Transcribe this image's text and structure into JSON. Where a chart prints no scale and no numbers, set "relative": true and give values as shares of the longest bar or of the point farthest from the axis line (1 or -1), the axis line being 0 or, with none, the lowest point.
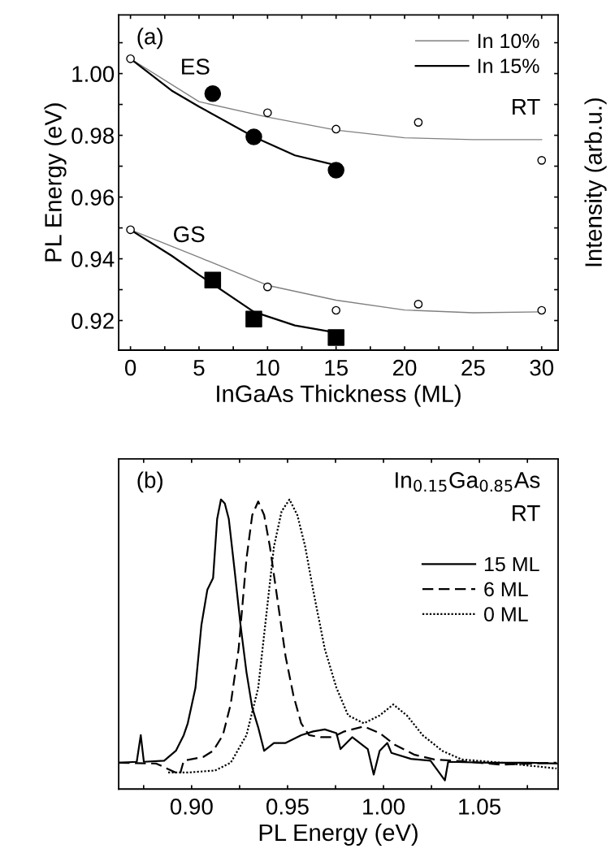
{
  "chart_data": [
    {
      "type": "scatter",
      "xlabel": "InGaAs Thickness (ML)",
      "ylabel": "PL Energy (eV)",
      "y2label": "Intensity (arb.u.)",
      "xlim": [
        -0.86,
        31.2
      ],
      "ylim": [
        0.9104,
        1.019
      ],
      "xticks": [
        0,
        {
          "value": 2.5,
          "label": null
        },
        5,
        {
          "value": 7.5,
          "label": null
        },
        10,
        {
          "value": 12.5,
          "label": null
        },
        15,
        {
          "value": 17.5,
          "label": null
        },
        20,
        {
          "value": 22.5,
          "label": null
        },
        25,
        {
          "value": 27.5,
          "label": null
        },
        30
      ],
      "yticks": [
        {
          "value": 0.92,
          "label": "0.92"
        },
        {
          "value": 0.93,
          "label": null
        },
        {
          "value": 0.94,
          "label": "0.94"
        },
        {
          "value": 0.95,
          "label": null
        },
        {
          "value": 0.96,
          "label": "0.96"
        },
        {
          "value": 0.97,
          "label": null
        },
        {
          "value": 0.98,
          "label": "0.98"
        },
        {
          "value": 0.99,
          "label": null
        },
        {
          "value": 1.0,
          "label": "1.00"
        },
        {
          "value": 1.01,
          "label": null
        }
      ],
      "grid": false,
      "legend": "top right",
      "annotations": [
        "(a)",
        "ES",
        "GS",
        "RT"
      ],
      "series": [
        {
          "name": "In 10%",
          "type": "line",
          "color": "#808080",
          "line_style": "solid",
          "marker": "none",
          "x": [
            0,
            5,
            10,
            15,
            20,
            25,
            30
          ],
          "values": [
            1.0048,
            0.9909,
            0.9859,
            0.9817,
            0.9792,
            0.9786,
            0.9786
          ]
        },
        {
          "name": "In 15%",
          "type": "line",
          "color": "#000000",
          "line_style": "solid",
          "marker": "none",
          "x": [
            0,
            3,
            5,
            9,
            12,
            15
          ],
          "values": [
            1.0048,
            0.9945,
            0.9893,
            0.9795,
            0.9735,
            0.9703
          ]
        },
        {
          "type": "line",
          "color": "#808080",
          "line_style": "solid",
          "marker": "none",
          "x": [
            0,
            5,
            10,
            15,
            20,
            25,
            30
          ],
          "values": [
            0.9494,
            0.9405,
            0.9314,
            0.9266,
            0.9234,
            0.9225,
            0.9228
          ]
        },
        {
          "type": "line",
          "color": "#000000",
          "line_style": "solid",
          "marker": "none",
          "x": [
            0,
            3,
            5,
            9,
            12,
            15
          ],
          "values": [
            0.9494,
            0.941,
            0.9348,
            0.9228,
            0.9184,
            0.9161
          ]
        },
        {
          "type": "scatter",
          "color": "#ffffff",
          "marker": "circle",
          "x": [
            0,
            10,
            15,
            21,
            30
          ],
          "values": [
            1.0048,
            0.9873,
            0.982,
            0.9842,
            0.9719
          ]
        },
        {
          "type": "scatter",
          "color": "#000000",
          "marker": "circle",
          "x": [
            6,
            9,
            15
          ],
          "values": [
            0.9935,
            0.9795,
            0.9687
          ]
        },
        {
          "type": "scatter",
          "color": "#ffffff",
          "marker": "circle",
          "x": [
            0,
            10,
            15,
            21,
            30
          ],
          "values": [
            0.9494,
            0.9309,
            0.9233,
            0.9253,
            0.9233
          ]
        },
        {
          "type": "scatter",
          "color": "#000000",
          "marker": "square",
          "x": [
            6,
            9,
            15
          ],
          "values": [
            0.9331,
            0.9205,
            0.9145
          ]
        }
      ]
    },
    {
      "type": "line",
      "relative": true,
      "xlabel": "PL Energy (eV)",
      "xlim": [
        0.862,
        1.091
      ],
      "xticks": [
        {
          "value": 0.875,
          "label": null
        },
        {
          "value": 0.9,
          "label": "0.90"
        },
        {
          "value": 0.925,
          "label": null
        },
        {
          "value": 0.95,
          "label": "0.95"
        },
        {
          "value": 0.975,
          "label": null
        },
        {
          "value": 1.0,
          "label": "1.00"
        },
        {
          "value": 1.025,
          "label": null
        },
        {
          "value": 1.05,
          "label": "1.05"
        },
        {
          "value": 1.075,
          "label": null
        }
      ],
      "tick_labels": "x",
      "grid": false,
      "legend": "right",
      "marker": "none",
      "annotations": [
        "(b)",
        "In$_{0.15}$Ga$_{0.85}$As",
        "RT"
      ],
      "series": [
        {
          "name": "15 ML",
          "color": "#000000",
          "line_style": "solid",
          "x": [
            0.862,
            0.8714,
            0.8735,
            0.8751,
            0.8857,
            0.8918,
            0.8959,
            0.898,
            0.902,
            0.9051,
            0.9082,
            0.9112,
            0.9133,
            0.9153,
            0.9173,
            0.9194,
            0.9224,
            0.9255,
            0.9286,
            0.9316,
            0.9347,
            0.9378,
            0.9429,
            0.949,
            0.9571,
            0.9633,
            0.9694,
            0.9755,
            0.9776,
            0.9837,
            0.9918,
            0.9949,
            0.998,
            1.002,
            1.0041,
            1.0143,
            1.0245,
            1.032,
            1.0337,
            1.0551,
            1.0755,
            1.0902
          ],
          "values": [
            0.091,
            0.094,
            0.186,
            0.094,
            0.098,
            0.132,
            0.186,
            0.227,
            0.349,
            0.566,
            0.688,
            0.729,
            0.932,
            1.0,
            0.986,
            0.932,
            0.756,
            0.566,
            0.403,
            0.281,
            0.213,
            0.132,
            0.159,
            0.159,
            0.186,
            0.199,
            0.206,
            0.193,
            0.138,
            0.179,
            0.138,
            0.05,
            0.132,
            0.159,
            0.125,
            0.104,
            0.098,
            0.03,
            0.094,
            0.091,
            0.091,
            0.088
          ]
        },
        {
          "name": "6 ML",
          "color": "#000000",
          "line_style": "dashed",
          "x": [
            0.862,
            0.8816,
            0.8939,
            0.8959,
            0.9061,
            0.9112,
            0.9163,
            0.9204,
            0.9245,
            0.9286,
            0.9316,
            0.9347,
            0.9378,
            0.9408,
            0.9449,
            0.949,
            0.9531,
            0.9571,
            0.9612,
            0.9673,
            0.9735,
            0.9796,
            0.9898,
            0.998,
            1.0061,
            1.0163,
            1.0265,
            1.0449,
            1.0612,
            1.0902
          ],
          "values": [
            0.091,
            0.088,
            0.05,
            0.098,
            0.111,
            0.132,
            0.186,
            0.294,
            0.484,
            0.796,
            0.946,
            0.993,
            0.946,
            0.837,
            0.647,
            0.457,
            0.322,
            0.227,
            0.186,
            0.179,
            0.179,
            0.199,
            0.216,
            0.193,
            0.152,
            0.118,
            0.102,
            0.094,
            0.084,
            0.091
          ]
        },
        {
          "name": "0 ML",
          "color": "#000000",
          "line_style": "dotted",
          "x": [
            0.8878,
            0.898,
            0.9122,
            0.9204,
            0.9286,
            0.9347,
            0.9388,
            0.9429,
            0.9469,
            0.951,
            0.9551,
            0.9592,
            0.9633,
            0.9694,
            0.9755,
            0.9816,
            0.9898,
            0.998,
            1.0051,
            1.0122,
            1.0204,
            1.0306,
            1.0408,
            1.0612,
            1.0902
          ],
          "values": [
            0.057,
            0.057,
            0.064,
            0.091,
            0.186,
            0.349,
            0.593,
            0.837,
            0.959,
            1.0,
            0.946,
            0.837,
            0.688,
            0.484,
            0.349,
            0.254,
            0.227,
            0.254,
            0.292,
            0.254,
            0.186,
            0.132,
            0.102,
            0.091,
            0.071
          ]
        }
      ]
    }
  ]
}
